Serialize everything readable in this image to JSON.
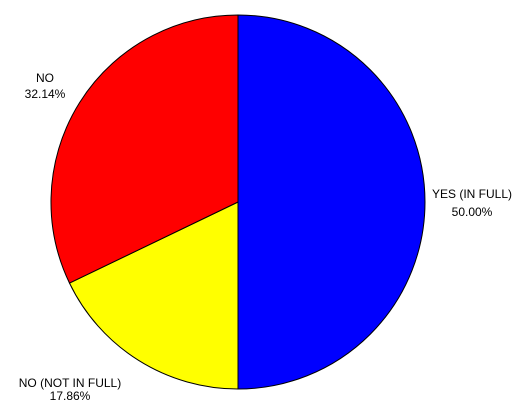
{
  "chart_data": {
    "type": "pie",
    "slices": [
      {
        "label": "YES (IN FULL)",
        "pct_text": "50.00%",
        "value": 50.0,
        "color": "#0000ff"
      },
      {
        "label": "NO (NOT IN FULL)",
        "pct_text": "17.86%",
        "value": 17.86,
        "color": "#ffff00"
      },
      {
        "label": "NO",
        "pct_text": "32.14%",
        "value": 32.14,
        "color": "#ff0000"
      }
    ],
    "start_angle": "12 o'clock",
    "direction": "clockwise",
    "legend": "none"
  }
}
